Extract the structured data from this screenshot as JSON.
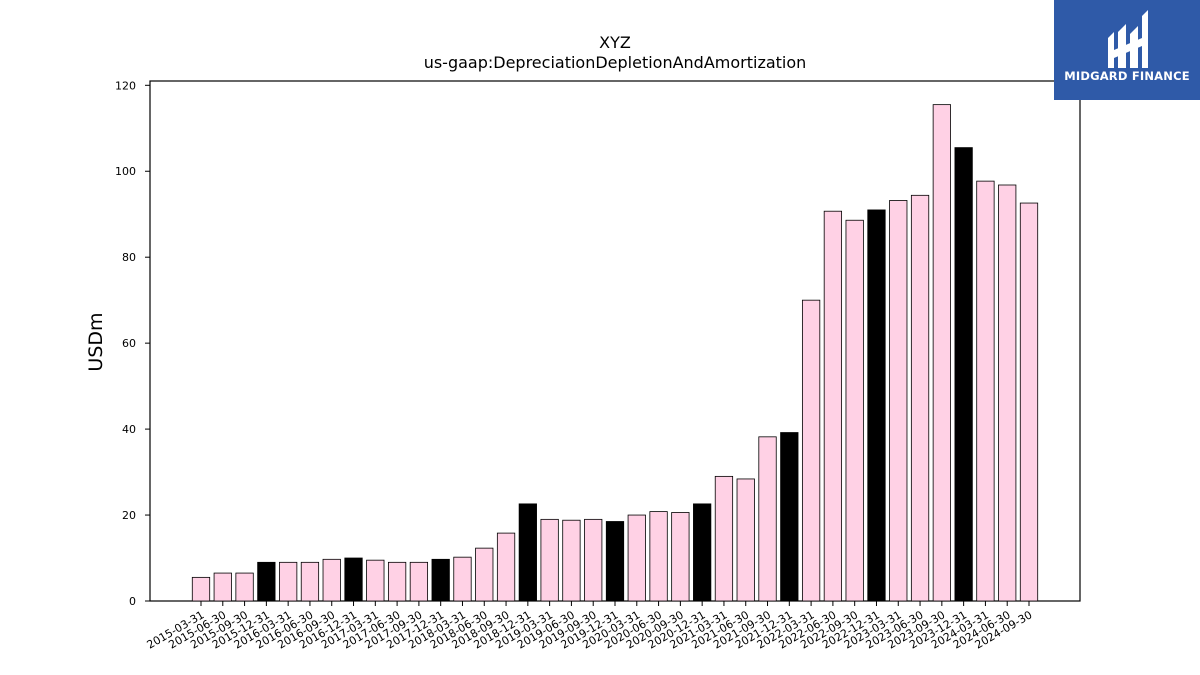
{
  "chart_data": {
    "type": "bar",
    "title": "XYZ",
    "subtitle": "us-gaap:DepreciationDepletionAndAmortization",
    "xlabel": "",
    "ylabel": "USDm",
    "ylim": [
      0,
      121
    ],
    "yticks": [
      0,
      20,
      40,
      60,
      80,
      100,
      120
    ],
    "grid": false,
    "categories": [
      "2015-03-31",
      "2015-06-30",
      "2015-09-30",
      "2015-12-31",
      "2016-03-31",
      "2016-06-30",
      "2016-09-30",
      "2016-12-31",
      "2017-03-31",
      "2017-06-30",
      "2017-09-30",
      "2017-12-31",
      "2018-03-31",
      "2018-06-30",
      "2018-09-30",
      "2018-12-31",
      "2019-03-31",
      "2019-06-30",
      "2019-09-30",
      "2019-12-31",
      "2020-03-31",
      "2020-06-30",
      "2020-09-30",
      "2020-12-31",
      "2021-03-31",
      "2021-06-30",
      "2021-09-30",
      "2021-12-31",
      "2022-03-31",
      "2022-06-30",
      "2022-09-30",
      "2022-12-31",
      "2023-03-31",
      "2023-06-30",
      "2023-09-30",
      "2023-12-31",
      "2024-03-31",
      "2024-06-30",
      "2024-09-30"
    ],
    "values": [
      5.5,
      6.5,
      6.5,
      9.0,
      9.0,
      9.0,
      9.7,
      10.0,
      9.5,
      9.0,
      9.0,
      9.7,
      10.2,
      12.3,
      15.8,
      22.6,
      19.0,
      18.8,
      19.0,
      18.5,
      20.0,
      20.8,
      20.6,
      22.6,
      29.0,
      28.4,
      38.2,
      39.2,
      70.0,
      90.7,
      88.6,
      91.0,
      93.2,
      94.4,
      115.5,
      105.5,
      97.7,
      96.8,
      92.6
    ],
    "colors": {
      "quarter": "#ffd1e5",
      "year_end": "#000000",
      "edge": "#000000"
    },
    "color_rule": "year_end bars (-12-31) are black, other quarters pink"
  },
  "logo": {
    "text": "MIDGARD FINANCE",
    "background": "#2f5aa8",
    "icon": "midgard-logo-icon"
  }
}
